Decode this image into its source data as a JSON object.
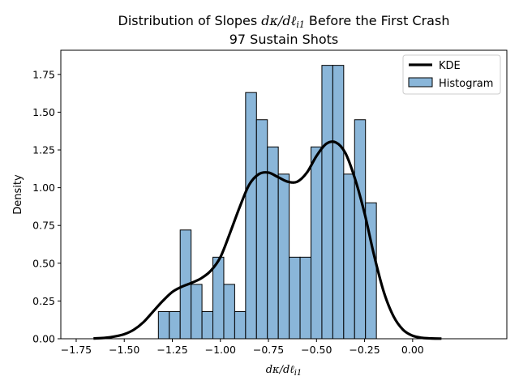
{
  "chart_data": {
    "type": "histogram+kde",
    "title_line1_prefix": "Distribution of Slopes ",
    "title_math": "dκ/dℓ",
    "title_math_sub": "i1",
    "title_line1_suffix": " Before the First Crash",
    "title_line2": "97 Sustain Shots",
    "xlabel_math": "dκ/dℓ",
    "xlabel_math_sub": "i1",
    "ylabel": "Density",
    "xlim": [
      -1.83,
      0.49
    ],
    "ylim": [
      0,
      1.91
    ],
    "xticks": [
      -1.75,
      -1.5,
      -1.25,
      -1.0,
      -0.75,
      -0.5,
      -0.25,
      0.0
    ],
    "xtick_labels": [
      "−1.75",
      "−1.50",
      "−1.25",
      "−1.00",
      "−0.75",
      "−0.50",
      "−0.25",
      "0.00"
    ],
    "yticks": [
      0,
      0.25,
      0.5,
      0.75,
      1.0,
      1.25,
      1.5,
      1.75
    ],
    "ytick_labels": [
      "0.00",
      "0.25",
      "0.50",
      "0.75",
      "1.00",
      "1.25",
      "1.50",
      "1.75"
    ],
    "histogram": {
      "name": "Histogram",
      "color": "#8ab6d9",
      "edge_color": "#000000",
      "bin_start": -1.3225,
      "bin_width": 0.0567,
      "densities": [
        0.18,
        0.18,
        0.72,
        0.36,
        0.18,
        0.54,
        0.36,
        0.18,
        1.63,
        1.45,
        1.27,
        1.09,
        0.54,
        0.54,
        1.27,
        1.81,
        1.81,
        1.09,
        1.45,
        0.9
      ]
    },
    "kde": {
      "name": "KDE",
      "color": "#000000",
      "x": [
        -1.66,
        -1.6,
        -1.55,
        -1.5,
        -1.45,
        -1.4,
        -1.35,
        -1.3,
        -1.25,
        -1.2,
        -1.15,
        -1.1,
        -1.05,
        -1.0,
        -0.95,
        -0.9,
        -0.85,
        -0.8,
        -0.75,
        -0.7,
        -0.65,
        -0.6,
        -0.55,
        -0.5,
        -0.45,
        -0.4,
        -0.35,
        -0.3,
        -0.25,
        -0.2,
        -0.15,
        -0.1,
        -0.05,
        0.0,
        0.05,
        0.1,
        0.15
      ],
      "y": [
        0.002,
        0.006,
        0.015,
        0.03,
        0.06,
        0.11,
        0.18,
        0.25,
        0.31,
        0.345,
        0.37,
        0.4,
        0.45,
        0.54,
        0.7,
        0.87,
        1.02,
        1.09,
        1.1,
        1.07,
        1.04,
        1.04,
        1.1,
        1.21,
        1.29,
        1.3,
        1.23,
        1.06,
        0.83,
        0.55,
        0.31,
        0.15,
        0.06,
        0.02,
        0.006,
        0.002,
        0.001
      ]
    },
    "legend": {
      "placement": "top-right",
      "entries": [
        "KDE",
        "Histogram"
      ]
    },
    "grid": false
  }
}
